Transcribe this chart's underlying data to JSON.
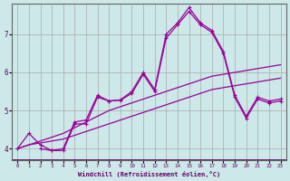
{
  "xlabel": "Windchill (Refroidissement éolien,°C)",
  "background_color": "#cce8e8",
  "grid_color": "#aaaaaa",
  "line_color": "#990099",
  "x_ticks": [
    0,
    1,
    2,
    3,
    4,
    5,
    6,
    7,
    8,
    9,
    10,
    11,
    12,
    13,
    14,
    15,
    16,
    17,
    18,
    19,
    20,
    21,
    22,
    23
  ],
  "y_ticks": [
    4,
    5,
    6,
    7
  ],
  "ylim": [
    3.7,
    7.8
  ],
  "xlim": [
    -0.5,
    23.5
  ],
  "line1_x": [
    0,
    1,
    2,
    3,
    4,
    5,
    6,
    7,
    8,
    9,
    10,
    11,
    12,
    13,
    14,
    15,
    16,
    17,
    18,
    19,
    20,
    21,
    22,
    23
  ],
  "line1_y": [
    4.0,
    4.4,
    4.1,
    3.95,
    4.0,
    4.7,
    4.75,
    5.4,
    5.25,
    5.28,
    5.5,
    6.0,
    5.55,
    7.0,
    7.3,
    7.7,
    7.3,
    7.1,
    6.55,
    5.4,
    4.85,
    5.35,
    5.25,
    5.3
  ],
  "line2_x": [
    0,
    1,
    2,
    3,
    4,
    5,
    6,
    7,
    8,
    9,
    10,
    11,
    12,
    13,
    14,
    15,
    16,
    17,
    18,
    19,
    20,
    21,
    22,
    23
  ],
  "line2_y": [
    4.0,
    4.1,
    4.15,
    4.2,
    4.25,
    4.35,
    4.45,
    4.55,
    4.65,
    4.75,
    4.85,
    4.95,
    5.05,
    5.15,
    5.25,
    5.35,
    5.45,
    5.55,
    5.6,
    5.65,
    5.7,
    5.75,
    5.8,
    5.85
  ],
  "line3_x": [
    0,
    1,
    2,
    3,
    4,
    5,
    6,
    7,
    8,
    9,
    10,
    11,
    12,
    13,
    14,
    15,
    16,
    17,
    18,
    19,
    20,
    21,
    22,
    23
  ],
  "line3_y": [
    4.0,
    4.1,
    4.2,
    4.3,
    4.4,
    4.55,
    4.7,
    4.85,
    5.0,
    5.1,
    5.2,
    5.3,
    5.4,
    5.5,
    5.6,
    5.7,
    5.8,
    5.9,
    5.95,
    6.0,
    6.05,
    6.1,
    6.15,
    6.2
  ],
  "line4_x": [
    2,
    3,
    4,
    5,
    6,
    7,
    8,
    9,
    10,
    11,
    12,
    13,
    14,
    15,
    16,
    17,
    18,
    19,
    20,
    21,
    22,
    23
  ],
  "line4_y": [
    4.0,
    3.95,
    3.95,
    4.65,
    4.65,
    5.35,
    5.25,
    5.27,
    5.45,
    5.95,
    5.5,
    6.9,
    7.25,
    7.6,
    7.25,
    7.05,
    6.5,
    5.35,
    4.8,
    5.3,
    5.2,
    5.25
  ]
}
